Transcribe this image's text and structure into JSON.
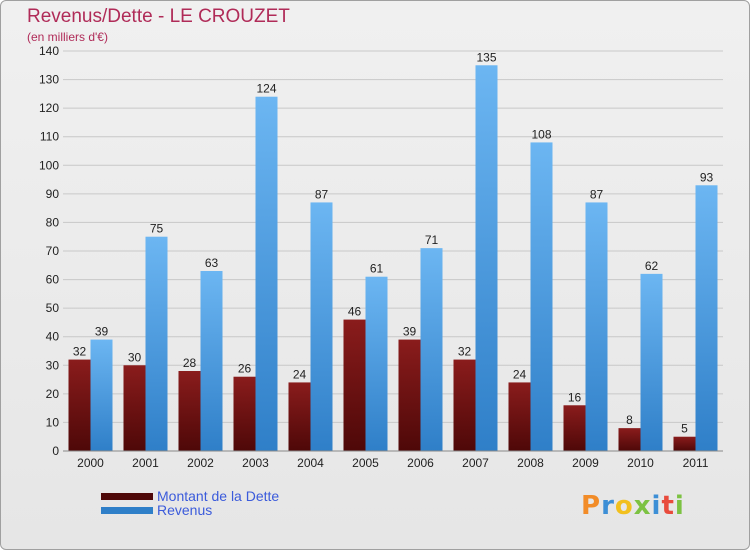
{
  "title": "Revenus/Dette - LE CROUZET",
  "subtitle": "(en milliers d'€)",
  "colors": {
    "debt_top": "#8a1c1c",
    "debt_bottom": "#4e0808",
    "revenue_top": "#6cb6f2",
    "revenue_bottom": "#2f7fc8",
    "grid": "#c8c8c8",
    "title": "#b02b58",
    "legend_text": "#3b5bdb"
  },
  "chart_data": {
    "type": "bar",
    "categories": [
      "2000",
      "2001",
      "2002",
      "2003",
      "2004",
      "2005",
      "2006",
      "2007",
      "2008",
      "2009",
      "2010",
      "2011"
    ],
    "series": [
      {
        "name": "Montant de la Dette",
        "values": [
          32,
          30,
          28,
          26,
          24,
          46,
          39,
          32,
          24,
          16,
          8,
          5
        ]
      },
      {
        "name": "Revenus",
        "values": [
          39,
          75,
          63,
          124,
          87,
          61,
          71,
          135,
          108,
          87,
          62,
          93
        ]
      }
    ],
    "ylim": [
      0,
      140
    ],
    "yticks": [
      0,
      10,
      20,
      30,
      40,
      50,
      60,
      70,
      80,
      90,
      100,
      110,
      120,
      130,
      140
    ],
    "grid": true,
    "legend_position": "bottom-left"
  },
  "legend": [
    {
      "label": "Montant de la Dette",
      "color_key": "debt"
    },
    {
      "label": "Revenus",
      "color_key": "revenue"
    }
  ],
  "logo": {
    "letters": [
      "P",
      "r",
      "o",
      "x",
      "i",
      "t",
      "i"
    ],
    "letter_colors": [
      "#f28c28",
      "#3d8fd6",
      "#f2c01e",
      "#7cc242",
      "#3d8fd6",
      "#e84b3c",
      "#7cc242"
    ]
  }
}
